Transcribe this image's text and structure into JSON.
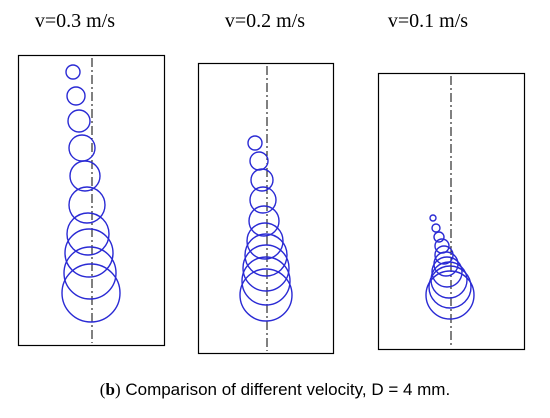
{
  "panels": [
    {
      "label": "v=0.3 m/s",
      "bubble_count": 10,
      "bubble_style": "tall column, widely spaced rings growing downward"
    },
    {
      "label": "v=0.2 m/s",
      "bubble_count": 10,
      "bubble_style": "medium column, closer spacing"
    },
    {
      "label": "v=0.1 m/s",
      "bubble_count": 10,
      "bubble_style": "compact cluster of overlapping rings"
    }
  ],
  "caption": {
    "open_paren": "(",
    "letter": "b",
    "close_paren": ")",
    "text": " Comparison of different velocity, D = 4 mm."
  },
  "colors": {
    "bubble": "#2a2ad4",
    "frame": "#000000",
    "axis": "#000000"
  }
}
